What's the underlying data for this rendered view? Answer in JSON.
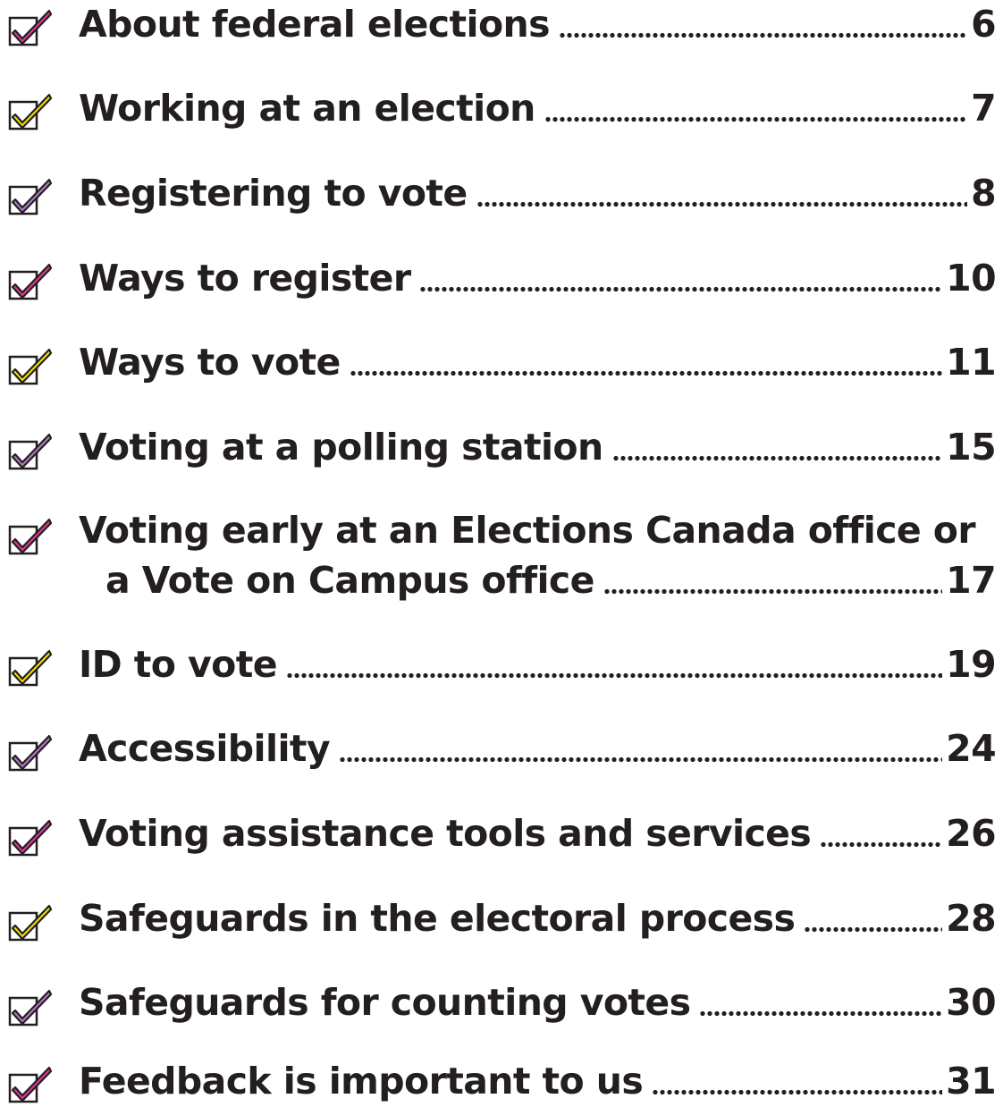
{
  "toc": {
    "entries": [
      {
        "title": "About federal elections",
        "page": "6",
        "check_color": "#e0399a"
      },
      {
        "title": "Working at an election",
        "page": "7",
        "check_color": "#f5e300"
      },
      {
        "title": "Registering to vote",
        "page": "8",
        "check_color": "#b57bc9"
      },
      {
        "title": "Ways to register",
        "page": "10",
        "check_color": "#e0399a"
      },
      {
        "title": "Ways to vote",
        "page": "11",
        "check_color": "#f5e300"
      },
      {
        "title": "Voting at a polling station",
        "page": "15",
        "check_color": "#b57bc9"
      },
      {
        "title_line1": "Voting early at an Elections Canada office or",
        "title_line2": "a Vote on Campus office",
        "page": "17",
        "check_color": "#e0399a"
      },
      {
        "title": "ID to vote",
        "page": "19",
        "check_color": "#f5e300"
      },
      {
        "title": "Accessibility",
        "page": "24",
        "check_color": "#b57bc9"
      },
      {
        "title": "Voting assistance tools and services",
        "page": "26",
        "check_color": "#e0399a"
      },
      {
        "title": "Safeguards in the electoral process",
        "page": "28",
        "check_color": "#f5e300"
      },
      {
        "title": "Safeguards for counting votes",
        "page": "30",
        "check_color": "#b57bc9"
      },
      {
        "title": "Feedback is important to us",
        "page": "31",
        "check_color": "#e0399a"
      }
    ]
  }
}
